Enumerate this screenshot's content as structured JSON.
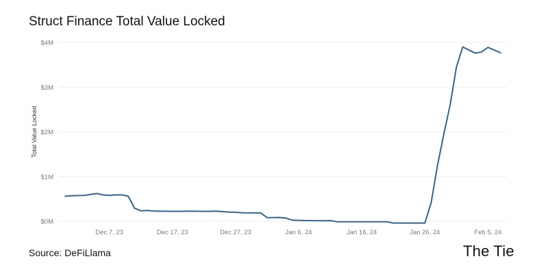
{
  "title": "Struct Finance Total Value Locked",
  "source": "Source: DeFiLlama",
  "logo_text": "The Tie",
  "colors": {
    "line": "#2e6590",
    "grid": "#eeeeee",
    "tick_text": "#7a7a7a"
  },
  "chart_data": {
    "type": "line",
    "title": "Struct Finance Total Value Locked",
    "xlabel": "",
    "ylabel": "Total Value Locked",
    "x_ticks": [
      "Dec 7, 23",
      "Dec 17, 23",
      "Dec 27, 23",
      "Jan 6, 24",
      "Jan 16, 24",
      "Jan 26, 24",
      "Feb 5, 24"
    ],
    "y_ticks": [
      {
        "value": 0,
        "label": "$0M"
      },
      {
        "value": 1000000,
        "label": "$1M"
      },
      {
        "value": 2000000,
        "label": "$2M"
      },
      {
        "value": 3000000,
        "label": "$3M"
      },
      {
        "value": 4000000,
        "label": "$4M"
      }
    ],
    "ylim": [
      -40000,
      4000000
    ],
    "xlim": [
      "2023-11-29",
      "2024-02-08"
    ],
    "grid": "horizontal",
    "series": [
      {
        "values": [
          [
            "2023-11-30",
            560000
          ],
          [
            "2023-12-01",
            570000
          ],
          [
            "2023-12-02",
            575000
          ],
          [
            "2023-12-03",
            580000
          ],
          [
            "2023-12-04",
            600000
          ],
          [
            "2023-12-05",
            620000
          ],
          [
            "2023-12-06",
            590000
          ],
          [
            "2023-12-07",
            580000
          ],
          [
            "2023-12-08",
            590000
          ],
          [
            "2023-12-09",
            590000
          ],
          [
            "2023-12-10",
            560000
          ],
          [
            "2023-12-11",
            290000
          ],
          [
            "2023-12-12",
            235000
          ],
          [
            "2023-12-13",
            240000
          ],
          [
            "2023-12-14",
            230000
          ],
          [
            "2023-12-15",
            225000
          ],
          [
            "2023-12-18",
            222000
          ],
          [
            "2023-12-20",
            225000
          ],
          [
            "2023-12-22",
            220000
          ],
          [
            "2023-12-24",
            225000
          ],
          [
            "2023-12-26",
            205000
          ],
          [
            "2023-12-27",
            200000
          ],
          [
            "2023-12-28",
            190000
          ],
          [
            "2023-12-31",
            185000
          ],
          [
            "2024-01-01",
            80000
          ],
          [
            "2024-01-03",
            85000
          ],
          [
            "2024-01-04",
            70000
          ],
          [
            "2024-01-05",
            25000
          ],
          [
            "2024-01-07",
            15000
          ],
          [
            "2024-01-10",
            12000
          ],
          [
            "2024-01-11",
            15000
          ],
          [
            "2024-01-12",
            -10000
          ],
          [
            "2024-01-14",
            -10000
          ],
          [
            "2024-01-20",
            -12000
          ],
          [
            "2024-01-21",
            -40000
          ],
          [
            "2024-01-26",
            -40000
          ],
          [
            "2024-01-27",
            420000
          ],
          [
            "2024-01-28",
            1250000
          ],
          [
            "2024-01-29",
            1950000
          ],
          [
            "2024-01-30",
            2600000
          ],
          [
            "2024-01-31",
            3450000
          ],
          [
            "2024-02-01",
            3900000
          ],
          [
            "2024-02-03",
            3760000
          ],
          [
            "2024-02-04",
            3790000
          ],
          [
            "2024-02-05",
            3890000
          ],
          [
            "2024-02-07",
            3770000
          ]
        ]
      }
    ]
  }
}
